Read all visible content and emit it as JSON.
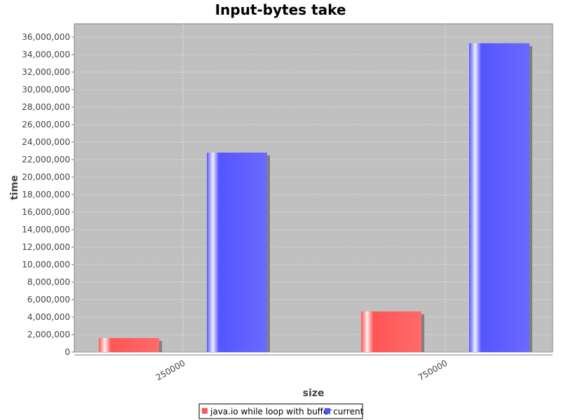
{
  "chart_data": {
    "type": "bar",
    "title": "Input-bytes take",
    "xlabel": "size",
    "ylabel": "time",
    "categories": [
      "250000",
      "750000"
    ],
    "series": [
      {
        "name": "java.io while loop with buffer",
        "values": [
          1600000,
          4650000
        ]
      },
      {
        "name": "current",
        "values": [
          22800000,
          35300000
        ]
      }
    ],
    "ylim": [
      0,
      37000000
    ],
    "yticks": [
      0,
      2000000,
      4000000,
      6000000,
      8000000,
      10000000,
      12000000,
      14000000,
      16000000,
      18000000,
      20000000,
      22000000,
      24000000,
      26000000,
      28000000,
      30000000,
      32000000,
      34000000,
      36000000
    ],
    "ytick_labels": [
      "0",
      "2,000,000",
      "4,000,000",
      "6,000,000",
      "8,000,000",
      "10,000,000",
      "12,000,000",
      "14,000,000",
      "16,000,000",
      "18,000,000",
      "20,000,000",
      "22,000,000",
      "24,000,000",
      "26,000,000",
      "28,000,000",
      "30,000,000",
      "32,000,000",
      "34,000,000",
      "36,000,000"
    ],
    "grid": true,
    "legend_position": "bottom",
    "colors": {
      "series": [
        "#ff5555",
        "#5555ff"
      ],
      "plot_background": "#c0c0c0",
      "grid": "#ffffff"
    }
  }
}
